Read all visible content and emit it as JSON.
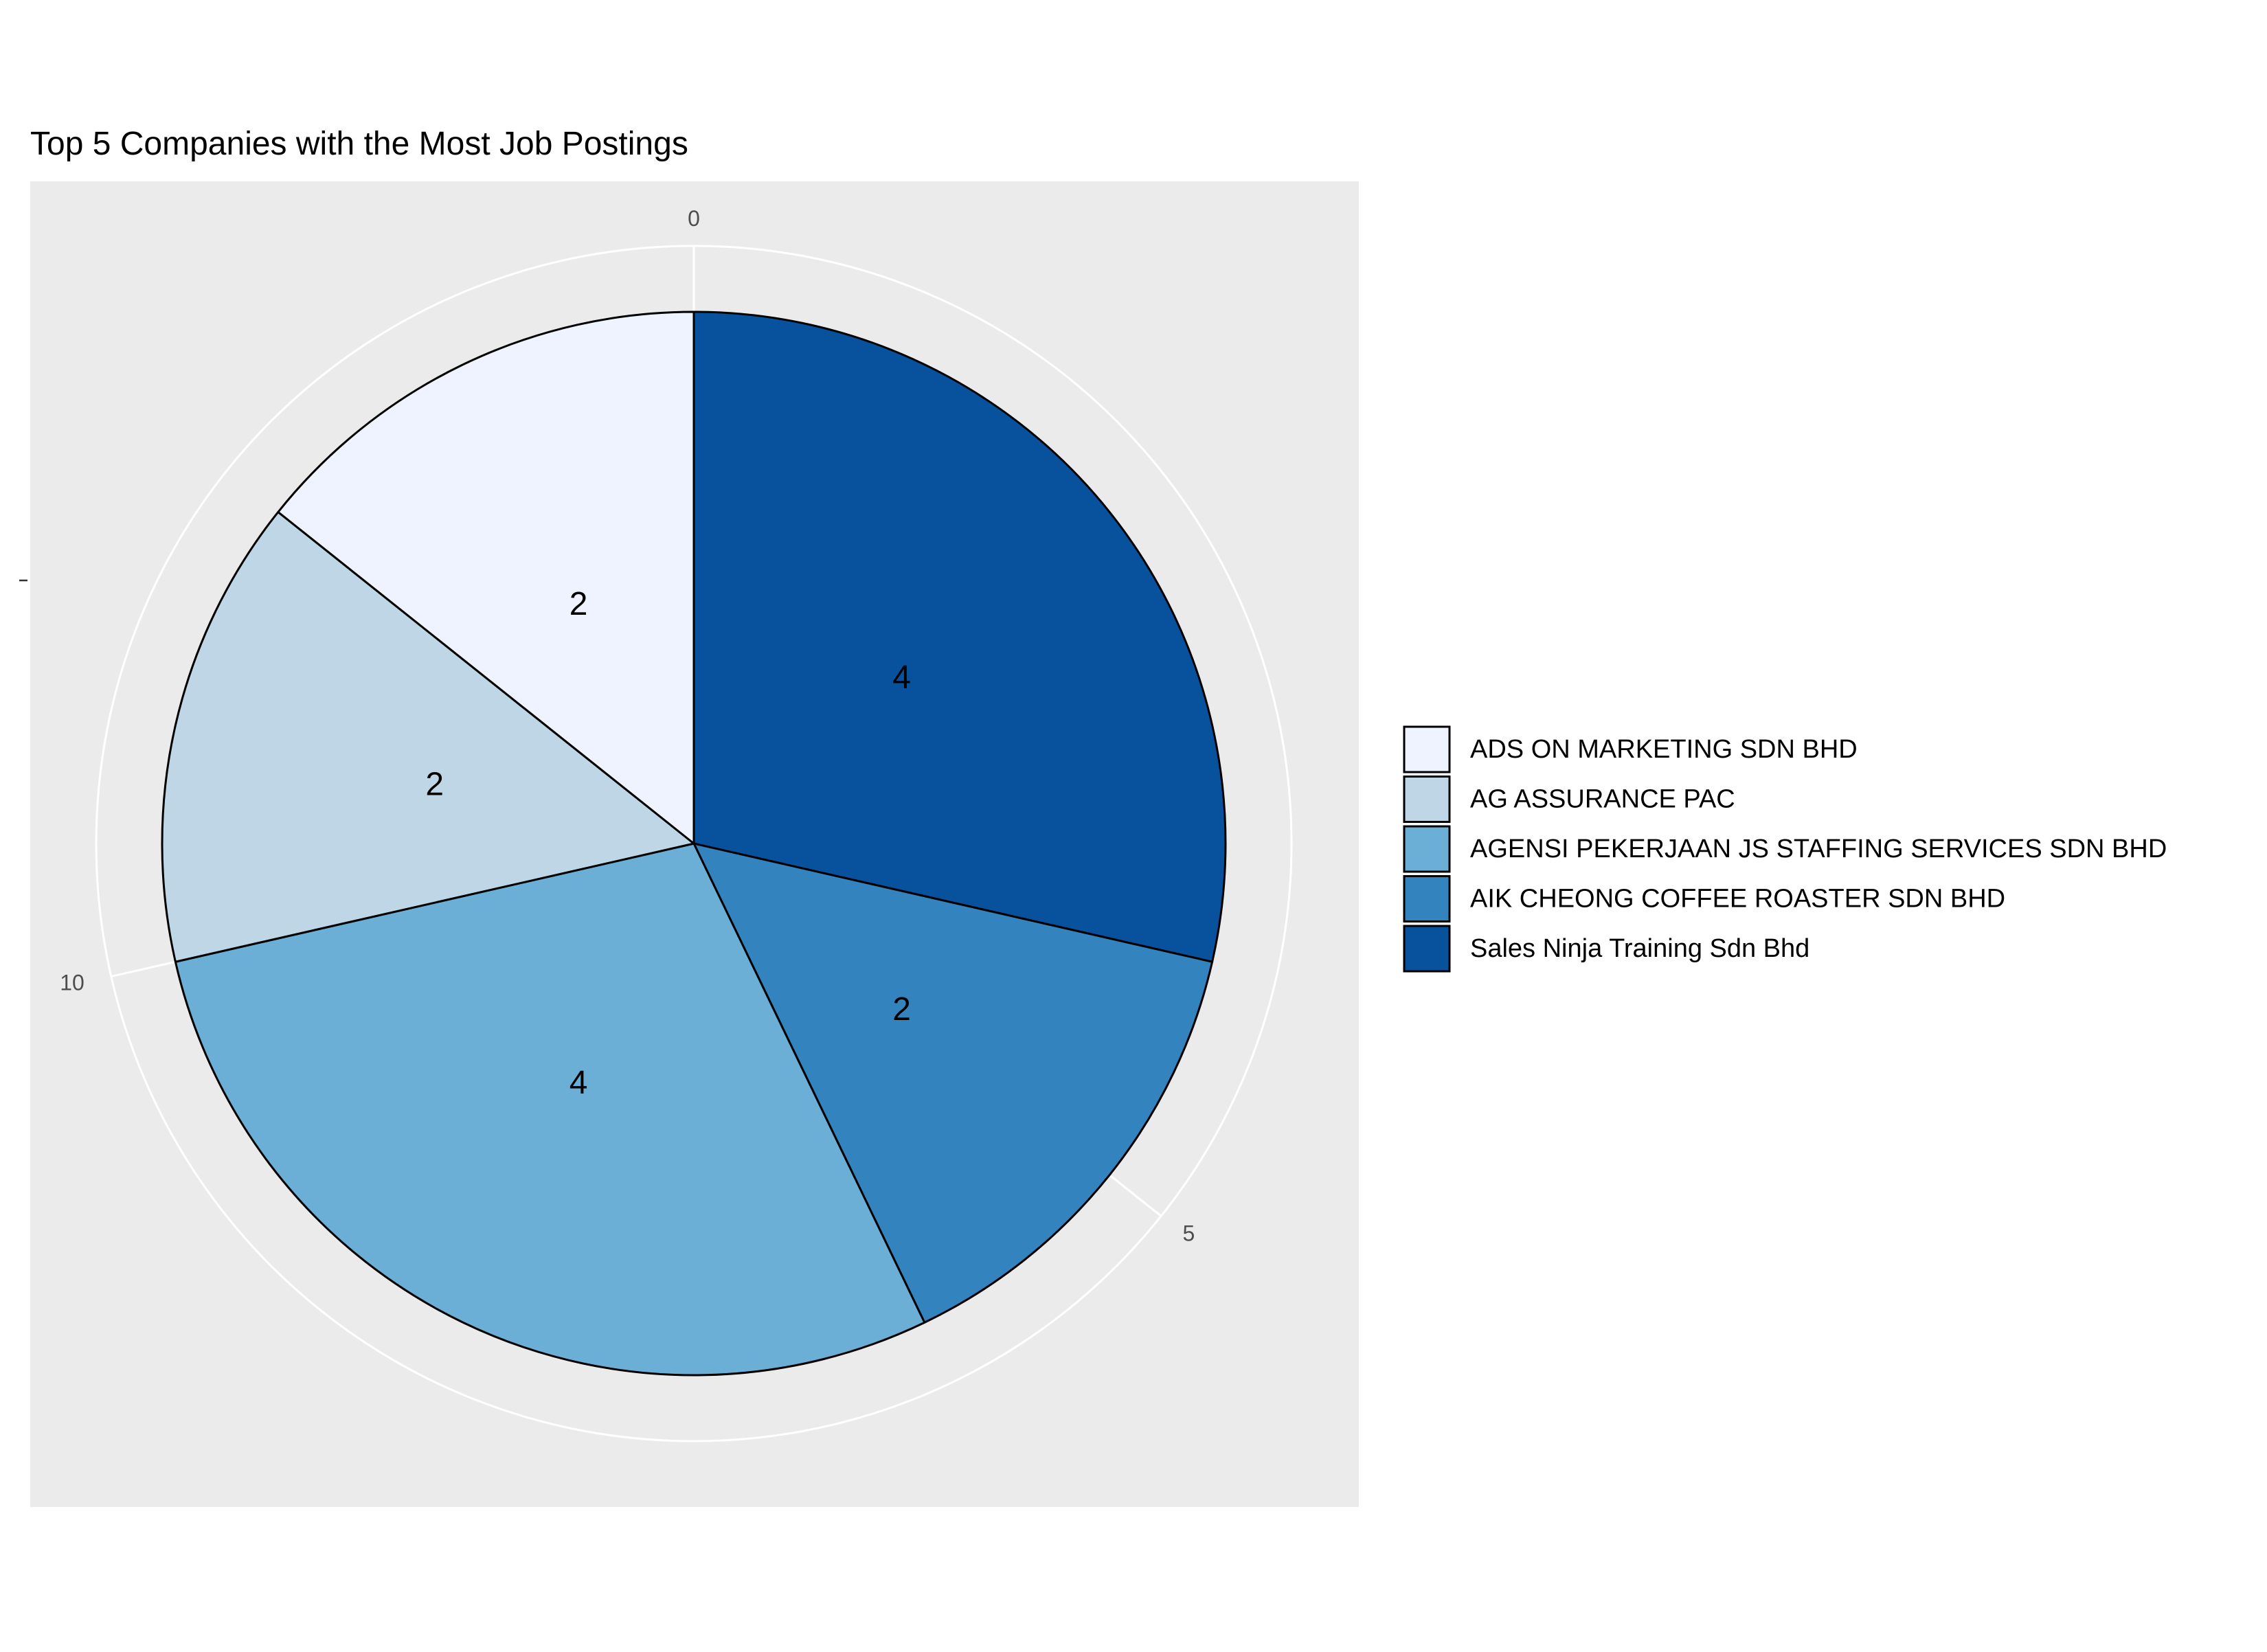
{
  "chart_data": {
    "type": "pie",
    "title": "Top 5 Companies with the Most Job Postings",
    "xlabel": "",
    "ylabel": "",
    "categories": [
      "ADS ON MARKETING SDN BHD",
      "AG ASSURANCE PAC",
      "AGENSI PEKERJAAN JS STAFFING SERVICES SDN BHD",
      "AIK CHEONG COFFEE ROASTER SDN BHD",
      "Sales Ninja Training Sdn Bhd"
    ],
    "values": [
      2,
      2,
      4,
      2,
      4
    ],
    "colors": [
      "#EEF3FF",
      "#BED6E5",
      "#6BAED6",
      "#3383BE",
      "#08519C"
    ],
    "theta_axis": {
      "ticks": [
        0,
        5,
        10
      ],
      "labels": [
        "0",
        "5",
        "10"
      ],
      "range": [
        0,
        14
      ]
    },
    "background": "#EBEBEB",
    "grid_color": "#FFFFFF",
    "grid": true,
    "legend_position": "right",
    "data_labels": true
  }
}
